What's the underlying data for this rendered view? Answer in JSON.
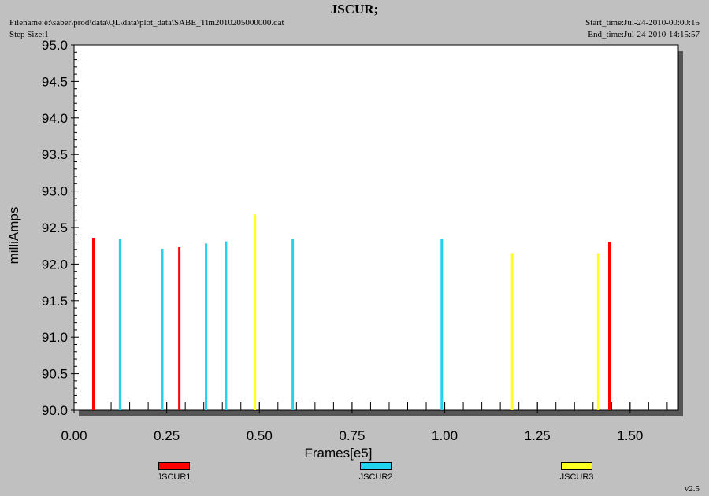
{
  "header": {
    "title": "JSCUR;",
    "filename": "Filename:e:\\saber\\prod\\data\\QL\\data\\plot_data\\SABE_Tlm2010205000000.dat",
    "step_size": "Step Size:1",
    "start_time": "Start_time:Jul-24-2010-00:00:15",
    "end_time": "End_time:Jul-24-2010-14:15:57"
  },
  "version": "v2.5",
  "chart_data": {
    "type": "bar",
    "title": "JSCUR;",
    "xlabel": "Frames[e5]",
    "ylabel": "milliAmps",
    "xlim": [
      0.0,
      1.63
    ],
    "ylim": [
      90.0,
      95.0
    ],
    "x_ticks": [
      "0.00",
      "0.25",
      "0.50",
      "0.75",
      "1.00",
      "1.25",
      "1.50"
    ],
    "x_tick_values": [
      0.0,
      0.25,
      0.5,
      0.75,
      1.0,
      1.25,
      1.5
    ],
    "y_ticks": [
      "90.0",
      "90.5",
      "91.0",
      "91.5",
      "92.0",
      "92.5",
      "93.0",
      "93.5",
      "94.0",
      "94.5",
      "95.0"
    ],
    "y_tick_values": [
      90.0,
      90.5,
      91.0,
      91.5,
      92.0,
      92.5,
      93.0,
      93.5,
      94.0,
      94.5,
      95.0
    ],
    "grid": false,
    "legend_position": "bottom",
    "series": [
      {
        "name": "JSCUR1",
        "color": "#ff0000",
        "points": [
          [
            0.052,
            92.36
          ],
          [
            0.284,
            92.23
          ],
          [
            1.444,
            92.3
          ]
        ]
      },
      {
        "name": "JSCUR2",
        "color": "#22d3ee",
        "points": [
          [
            0.124,
            92.34
          ],
          [
            0.238,
            92.21
          ],
          [
            0.356,
            92.28
          ],
          [
            0.41,
            92.31
          ],
          [
            0.59,
            92.34
          ],
          [
            0.992,
            92.34
          ]
        ]
      },
      {
        "name": "JSCUR3",
        "color": "#ffff22",
        "points": [
          [
            0.488,
            92.68
          ],
          [
            1.182,
            92.15
          ],
          [
            1.414,
            92.15
          ]
        ]
      }
    ]
  }
}
